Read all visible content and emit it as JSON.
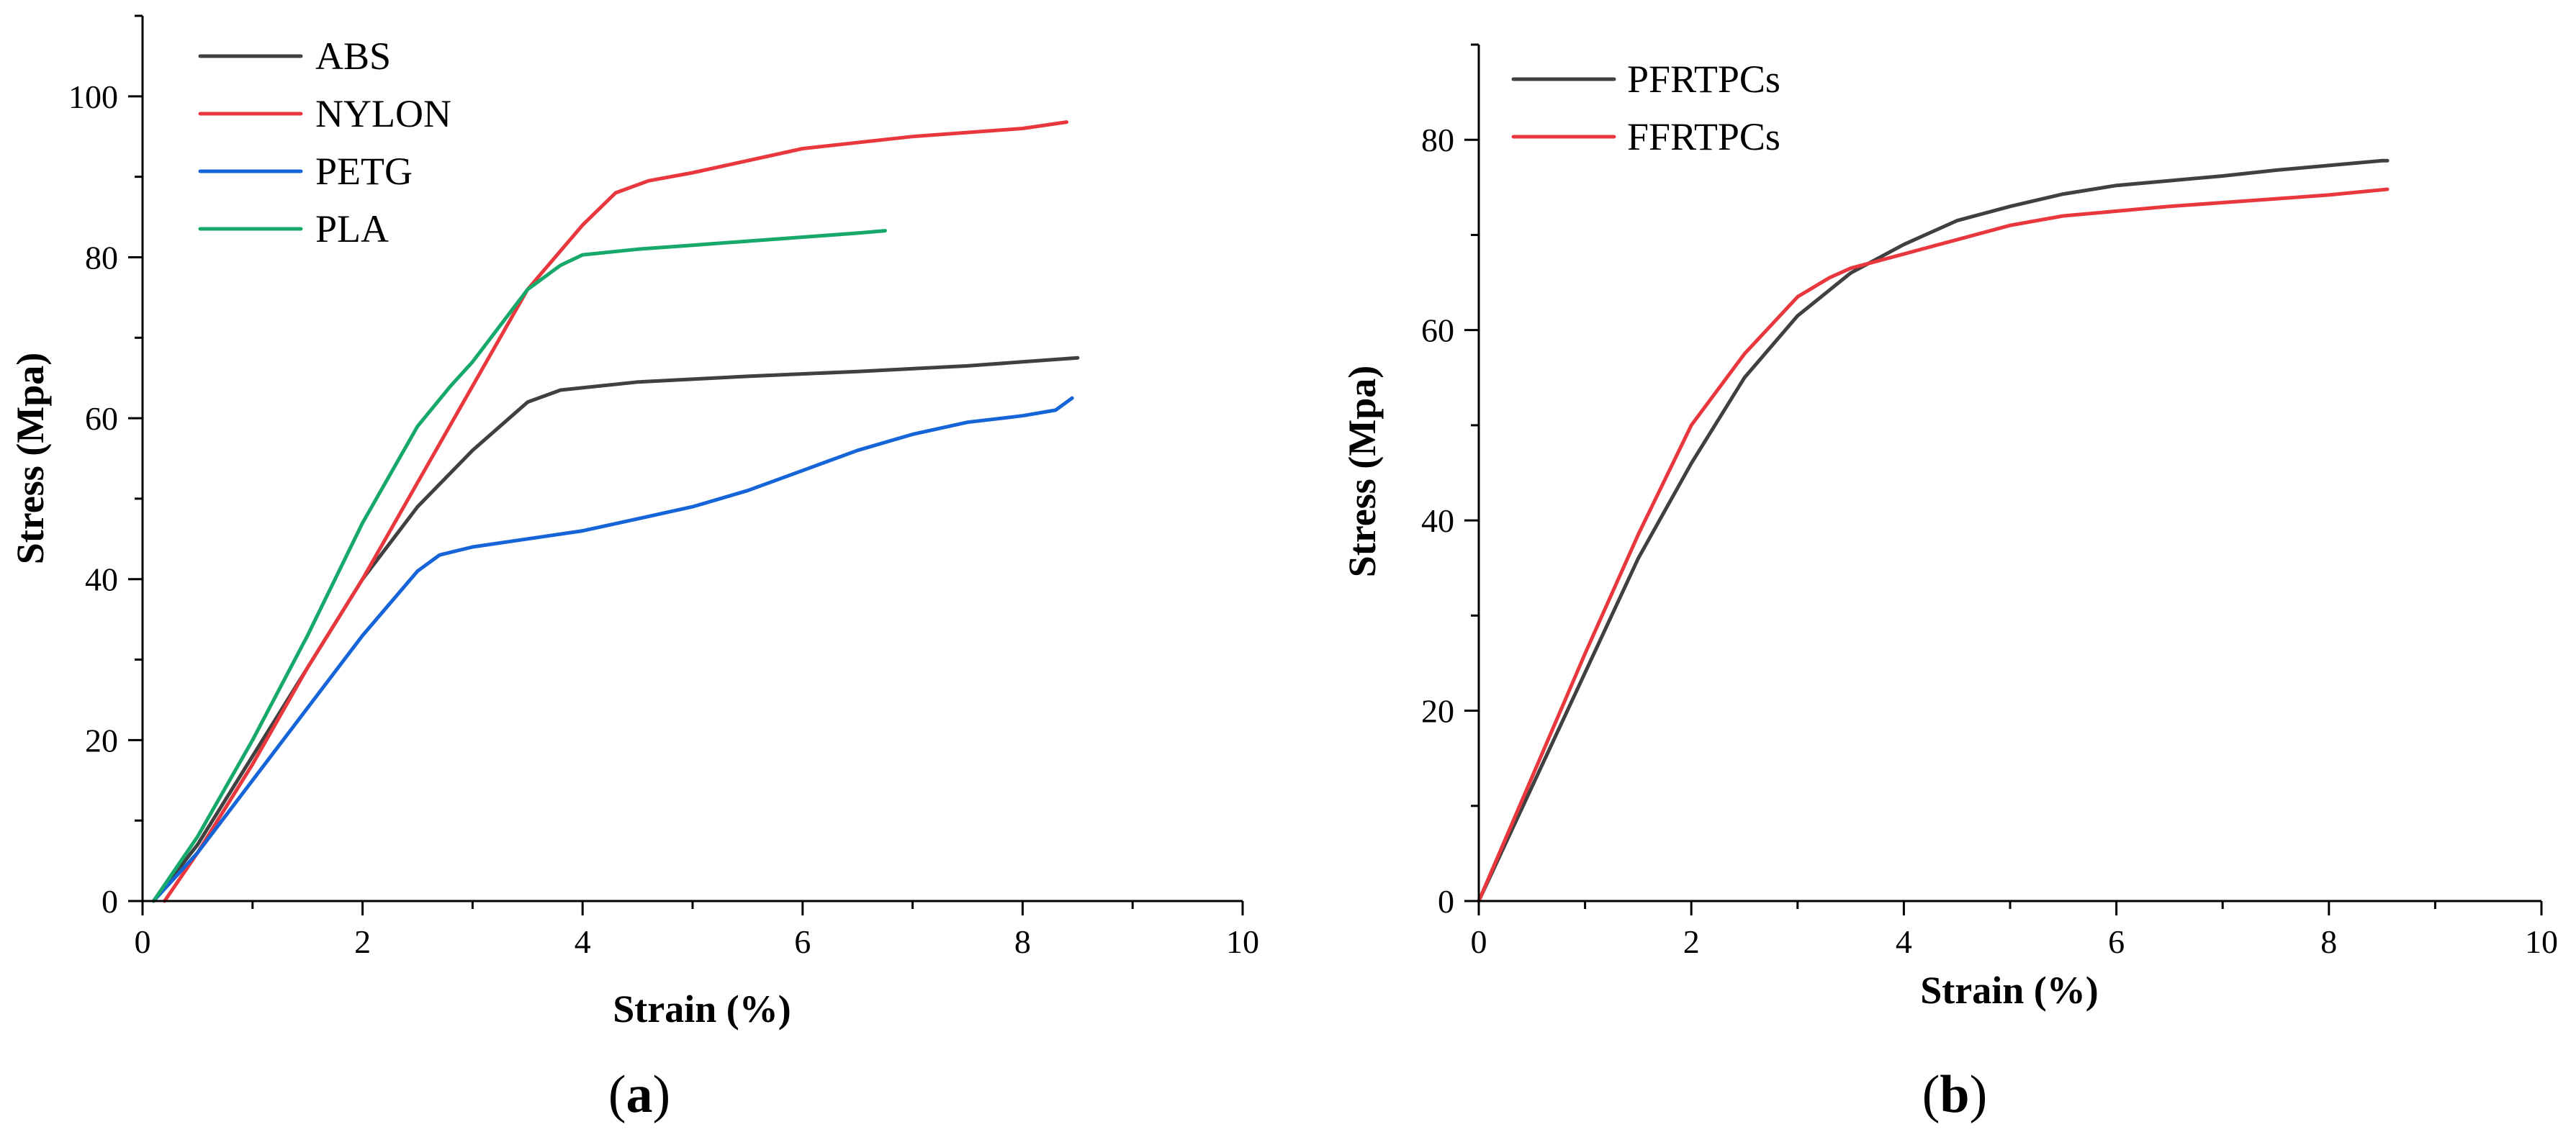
{
  "chart_data": [
    {
      "type": "line",
      "panel_label": "a",
      "title": "",
      "xlabel": "Strain (%)",
      "ylabel": "Stress (Mpa)",
      "xlim": [
        0,
        10
      ],
      "ylim": [
        0,
        110
      ],
      "xticks": [
        0,
        2,
        4,
        6,
        8,
        10
      ],
      "yticks": [
        0,
        20,
        40,
        60,
        80,
        100
      ],
      "grid": false,
      "legend_position": "top-left",
      "series": [
        {
          "name": "ABS",
          "color": "#404040",
          "x": [
            0.1,
            0.5,
            1.0,
            1.5,
            2.0,
            2.5,
            3.0,
            3.5,
            3.8,
            4.5,
            5.5,
            6.5,
            7.5,
            8.0,
            8.5
          ],
          "y": [
            0,
            7,
            18,
            29,
            40,
            49,
            56,
            62,
            63.5,
            64.5,
            65.2,
            65.8,
            66.5,
            67,
            67.5
          ]
        },
        {
          "name": "NYLON",
          "color": "#e8383d",
          "x": [
            0.2,
            0.5,
            1.0,
            1.5,
            2.0,
            2.5,
            3.0,
            3.5,
            4.0,
            4.3,
            4.6,
            5.0,
            6.0,
            7.0,
            8.0,
            8.4
          ],
          "y": [
            0,
            6,
            17,
            29,
            40,
            52,
            64,
            76,
            84,
            88,
            89.5,
            90.5,
            93.5,
            95,
            96,
            96.8
          ]
        },
        {
          "name": "PETG",
          "color": "#1565d8",
          "x": [
            0.1,
            0.5,
            1.0,
            1.5,
            2.0,
            2.5,
            2.7,
            3.0,
            3.5,
            4.0,
            4.5,
            5.0,
            5.5,
            6.0,
            6.5,
            7.0,
            7.5,
            8.0,
            8.3,
            8.45
          ],
          "y": [
            0,
            6,
            15,
            24,
            33,
            41,
            43,
            44,
            45,
            46,
            47.5,
            49,
            51,
            53.5,
            56,
            58,
            59.5,
            60.3,
            61,
            62.5
          ]
        },
        {
          "name": "PLA",
          "color": "#17a86b",
          "x": [
            0.1,
            0.5,
            1.0,
            1.5,
            2.0,
            2.5,
            2.8,
            3.0,
            3.5,
            3.8,
            4.0,
            4.5,
            5.0,
            5.5,
            6.0,
            6.5,
            6.75
          ],
          "y": [
            0,
            8,
            20,
            33,
            47,
            59,
            64,
            67,
            76,
            79,
            80.3,
            81,
            81.5,
            82,
            82.5,
            83,
            83.3
          ]
        }
      ]
    },
    {
      "type": "line",
      "panel_label": "b",
      "title": "",
      "xlabel": "Strain (%)",
      "ylabel": "Stress (Mpa)",
      "xlim": [
        0,
        10
      ],
      "ylim": [
        0,
        90
      ],
      "xticks": [
        0,
        2,
        4,
        6,
        8,
        10
      ],
      "yticks": [
        0,
        20,
        40,
        60,
        80
      ],
      "grid": false,
      "legend_position": "top-left",
      "series": [
        {
          "name": "PFRTPCs",
          "color": "#404040",
          "x": [
            0,
            0.5,
            1.0,
            1.5,
            2.0,
            2.5,
            3.0,
            3.5,
            4.0,
            4.5,
            5.0,
            5.5,
            6.0,
            6.5,
            7.0,
            7.5,
            8.0,
            8.5,
            8.55
          ],
          "y": [
            0,
            12,
            24,
            36,
            46,
            55,
            61.5,
            66,
            69,
            71.5,
            73,
            74.3,
            75.2,
            75.7,
            76.2,
            76.8,
            77.3,
            77.8,
            77.8
          ]
        },
        {
          "name": "FFRTPCs",
          "color": "#e8383d",
          "x": [
            0,
            0.5,
            1.0,
            1.5,
            2.0,
            2.5,
            3.0,
            3.3,
            3.5,
            4.0,
            4.5,
            5.0,
            5.5,
            6.0,
            6.5,
            7.0,
            7.5,
            8.0,
            8.55
          ],
          "y": [
            0,
            13,
            26,
            38.5,
            50,
            57.5,
            63.5,
            65.5,
            66.5,
            68,
            69.5,
            71,
            72,
            72.5,
            73,
            73.4,
            73.8,
            74.2,
            74.8
          ]
        }
      ]
    }
  ]
}
